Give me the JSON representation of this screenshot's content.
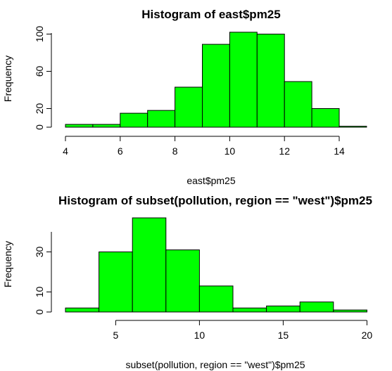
{
  "chart_data": [
    {
      "type": "bar",
      "title": "Histogram of east$pm25",
      "xlabel": "east$pm25",
      "ylabel": "Frequency",
      "bins": [
        [
          3,
          4
        ],
        [
          4,
          5
        ],
        [
          5,
          6
        ],
        [
          6,
          7
        ],
        [
          7,
          8
        ],
        [
          8,
          9
        ],
        [
          9,
          10
        ],
        [
          10,
          11
        ],
        [
          11,
          12
        ],
        [
          12,
          13
        ],
        [
          13,
          14
        ]
      ],
      "values": [
        0,
        3,
        3,
        15,
        18,
        43,
        89,
        102,
        100,
        49,
        20
      ],
      "bin_edges": [
        4,
        5,
        6,
        7,
        8,
        9,
        10,
        11,
        12,
        13,
        14,
        15
      ],
      "counts": [
        3,
        3,
        15,
        18,
        43,
        89,
        102,
        100,
        49,
        20,
        1
      ],
      "x_ticks": [
        4,
        6,
        8,
        10,
        12,
        14
      ],
      "y_ticks": [
        0,
        20,
        60,
        100
      ],
      "xlim": [
        4,
        15
      ],
      "ylim": [
        0,
        102
      ],
      "bar_color": "#00ff00",
      "grid": false
    },
    {
      "type": "bar",
      "title": "Histogram of subset(pollution, region == \"west\")$pm25",
      "xlabel": "subset(pollution, region == \"west\")$pm25",
      "ylabel": "Frequency",
      "bin_edges": [
        2,
        4,
        6,
        8,
        10,
        12,
        14,
        16,
        18,
        20
      ],
      "counts": [
        2,
        30,
        47,
        31,
        13,
        2,
        3,
        5,
        1
      ],
      "x_ticks": [
        5,
        10,
        15,
        20
      ],
      "y_ticks": [
        0,
        10,
        30
      ],
      "xlim": [
        2,
        20
      ],
      "ylim": [
        0,
        47
      ],
      "bar_color": "#00ff00",
      "grid": false
    }
  ]
}
